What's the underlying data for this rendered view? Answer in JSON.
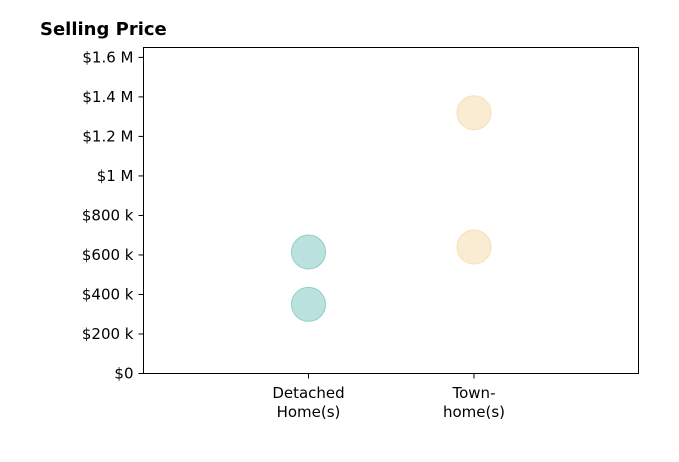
{
  "chart_data": {
    "type": "scatter",
    "title": "Selling Price",
    "xlabel": "",
    "ylabel": "",
    "categories": [
      [
        "Detached",
        "Home(s)"
      ],
      [
        "Town-",
        "home(s)"
      ]
    ],
    "ylim": [
      0,
      1650000
    ],
    "yticks": [
      {
        "value": 0,
        "label": "$0"
      },
      {
        "value": 200000,
        "label": "$200 k"
      },
      {
        "value": 400000,
        "label": "$400 k"
      },
      {
        "value": 600000,
        "label": "$600 k"
      },
      {
        "value": 800000,
        "label": "$800 k"
      },
      {
        "value": 1000000,
        "label": "$1 M"
      },
      {
        "value": 1200000,
        "label": "$1.2 M"
      },
      {
        "value": 1400000,
        "label": "$1.4 M"
      },
      {
        "value": 1600000,
        "label": "$1.6 M"
      }
    ],
    "points": [
      {
        "category": 0,
        "value": 350000,
        "color": "#8ecfc9"
      },
      {
        "category": 0,
        "value": 615000,
        "color": "#8ecfc9"
      },
      {
        "category": 1,
        "value": 640000,
        "color": "#f6e0b5"
      },
      {
        "category": 1,
        "value": 1320000,
        "color": "#f6e0b5"
      }
    ],
    "legend": "none",
    "grid": false
  }
}
